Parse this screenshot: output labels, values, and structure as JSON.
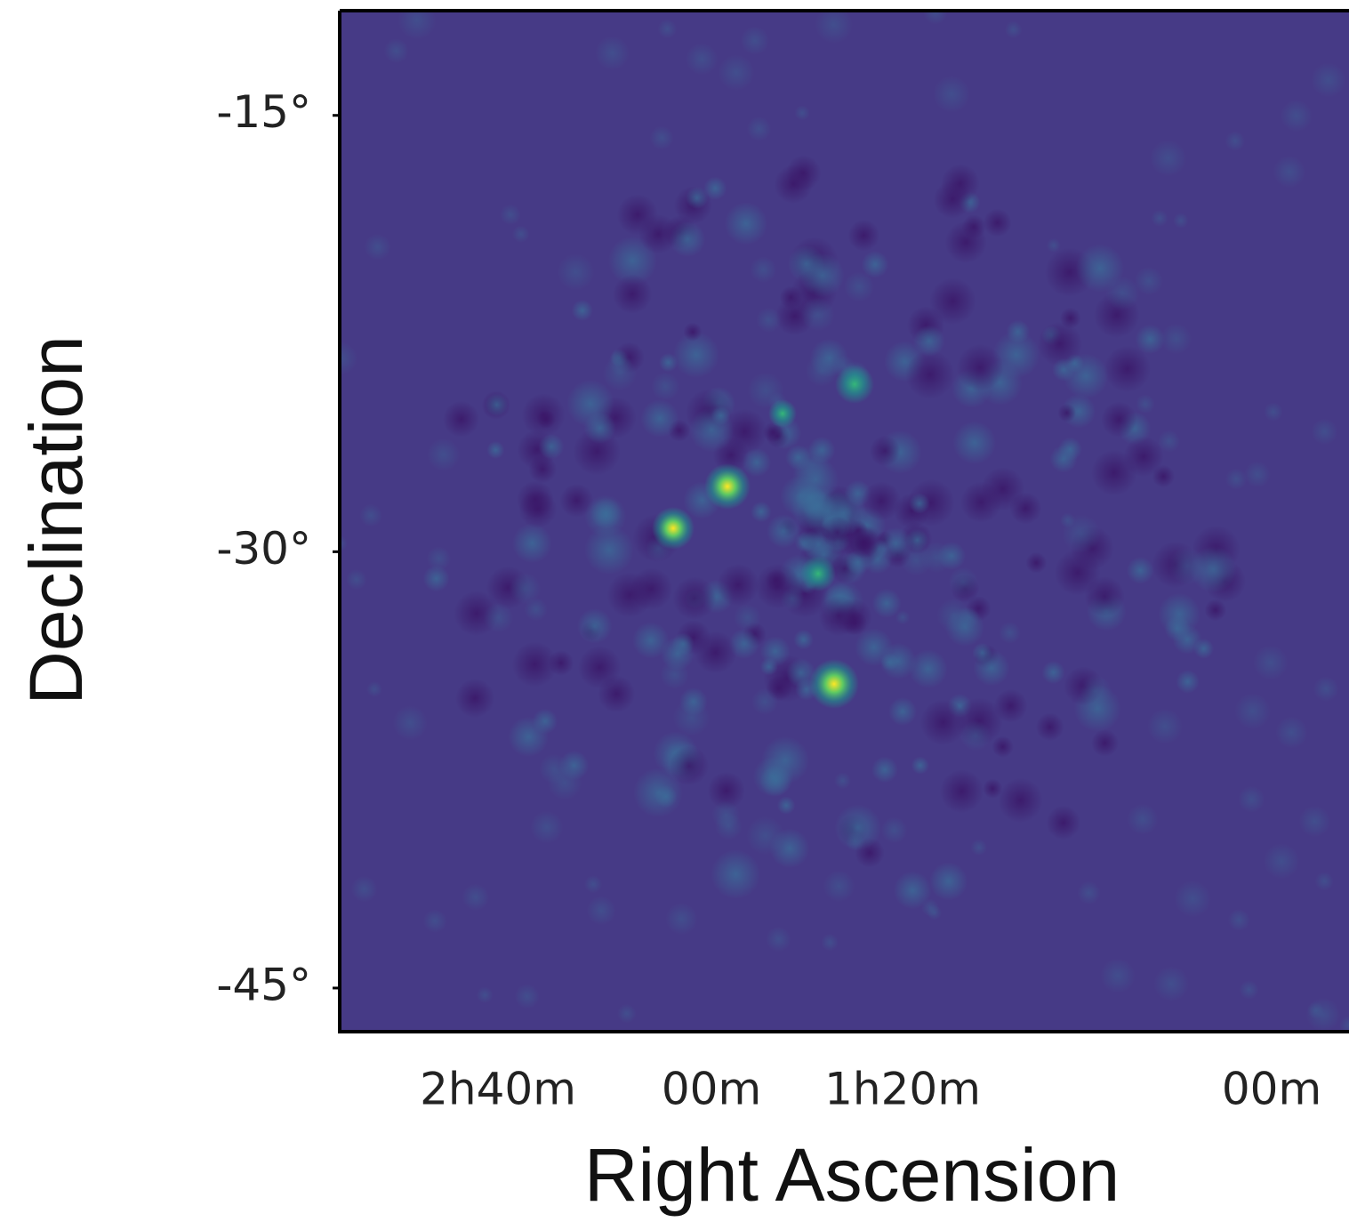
{
  "chart_data": {
    "type": "image",
    "x_label": "Right Ascension",
    "y_label": "Declination",
    "x_tick_labels": [
      "2h40m",
      "00m",
      "1h20m",
      "00m"
    ],
    "ylim": [
      -46.5,
      -11.4
    ],
    "yticks": [
      {
        "value": -15,
        "label": "-15°"
      },
      {
        "value": -30,
        "label": "-30°"
      },
      {
        "value": -45,
        "label": "-45°"
      }
    ],
    "colormap": "viridis"
  }
}
